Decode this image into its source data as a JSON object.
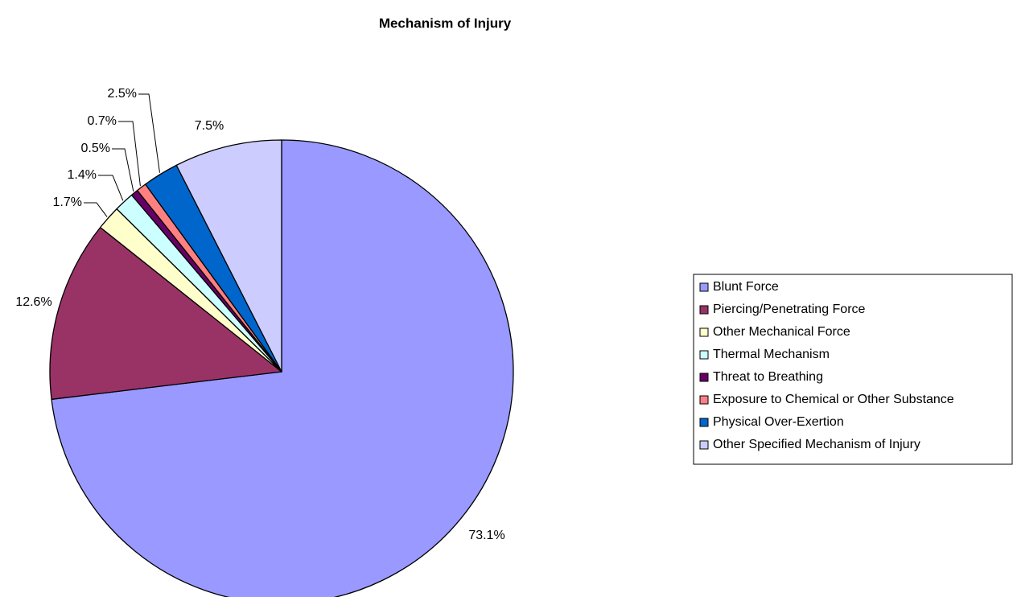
{
  "chart_data": {
    "type": "pie",
    "title": "Mechanism of Injury",
    "categories": [
      "Blunt Force",
      "Piercing/Penetrating Force",
      "Other Mechanical Force",
      "Thermal Mechanism",
      "Threat to Breathing",
      "Exposure to Chemical or Other Substance",
      "Physical Over-Exertion",
      "Other Specified Mechanism of Injury"
    ],
    "values": [
      73.1,
      12.6,
      1.7,
      1.4,
      0.5,
      0.7,
      2.5,
      7.5
    ],
    "value_labels": [
      "73.1%",
      "12.6%",
      "1.7%",
      "1.4%",
      "0.5%",
      "0.7%",
      "2.5%",
      "7.5%"
    ],
    "colors": [
      "#9999ff",
      "#993366",
      "#ffffcc",
      "#ccffff",
      "#660066",
      "#ff8080",
      "#0066cc",
      "#ccccff"
    ],
    "legend": "right"
  }
}
